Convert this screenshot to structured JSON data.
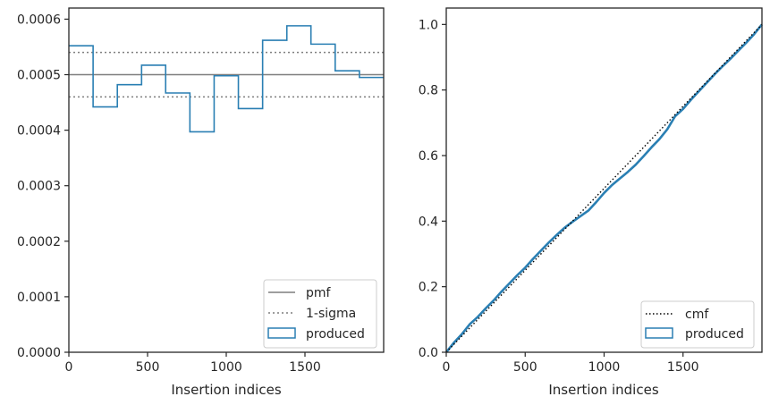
{
  "colors": {
    "produced": "#2a7fb3",
    "pmf": "#7f7f7f",
    "sigma": "#7f7f7f",
    "cmf": "#000000",
    "frame": "#262626"
  },
  "chart_data": [
    {
      "type": "line",
      "title": "",
      "xlabel": "Insertion indices",
      "ylabel": "",
      "xlim": [
        0,
        2000
      ],
      "ylim": [
        0,
        0.00062
      ],
      "xticks": [
        0,
        500,
        1000,
        1500
      ],
      "xtick_labels": [
        "0",
        "500",
        "1000",
        "1500"
      ],
      "yticks": [
        0,
        0.0001,
        0.0002,
        0.0003,
        0.0004,
        0.0005,
        0.0006
      ],
      "ytick_labels": [
        "0.0000",
        "0.0001",
        "0.0002",
        "0.0003",
        "0.0004",
        "0.0005",
        "0.0006"
      ],
      "histogram_series": {
        "name": "produced",
        "bin_edges": [
          0,
          154,
          308,
          462,
          615,
          769,
          923,
          1077,
          1231,
          1385,
          1538,
          1692,
          1846,
          2000
        ],
        "values": [
          0.000552,
          0.000442,
          0.000482,
          0.000517,
          0.000467,
          0.000397,
          0.000498,
          0.000439,
          0.000562,
          0.000588,
          0.000555,
          0.000507,
          0.000495
        ]
      },
      "pmf": {
        "name": "pmf",
        "value": 0.0005
      },
      "sigma": {
        "name": "1-sigma",
        "values": [
          0.00054,
          0.00046
        ]
      },
      "legend": {
        "position": "lower-right",
        "entries": [
          "pmf",
          "1-sigma",
          "produced"
        ]
      }
    },
    {
      "type": "line",
      "title": "",
      "xlabel": "Insertion indices",
      "ylabel": "",
      "xlim": [
        0,
        2000
      ],
      "ylim": [
        0,
        1.05
      ],
      "xticks": [
        0,
        500,
        1000,
        1500
      ],
      "xtick_labels": [
        "0",
        "500",
        "1000",
        "1500"
      ],
      "yticks": [
        0,
        0.2,
        0.4,
        0.6,
        0.8,
        1.0
      ],
      "ytick_labels": [
        "0.0",
        "0.2",
        "0.4",
        "0.6",
        "0.8",
        "1.0"
      ],
      "cmf": {
        "name": "cmf",
        "x": [
          0,
          2000
        ],
        "y": [
          0,
          1.0
        ]
      },
      "produced": {
        "name": "produced",
        "x": [
          0,
          50,
          100,
          150,
          200,
          250,
          300,
          350,
          400,
          450,
          500,
          550,
          600,
          650,
          700,
          750,
          800,
          850,
          900,
          950,
          1000,
          1050,
          1100,
          1150,
          1200,
          1250,
          1300,
          1350,
          1400,
          1450,
          1500,
          1550,
          1600,
          1650,
          1700,
          1750,
          1800,
          1850,
          1900,
          1950,
          2000
        ],
        "y": [
          0,
          0.03,
          0.056,
          0.086,
          0.108,
          0.134,
          0.158,
          0.185,
          0.21,
          0.235,
          0.258,
          0.285,
          0.31,
          0.335,
          0.358,
          0.38,
          0.398,
          0.415,
          0.432,
          0.458,
          0.486,
          0.51,
          0.53,
          0.55,
          0.572,
          0.598,
          0.625,
          0.65,
          0.68,
          0.72,
          0.742,
          0.77,
          0.796,
          0.822,
          0.848,
          0.872,
          0.895,
          0.92,
          0.944,
          0.97,
          1.0
        ]
      },
      "legend": {
        "position": "lower-right",
        "entries": [
          "cmf",
          "produced"
        ]
      }
    }
  ]
}
